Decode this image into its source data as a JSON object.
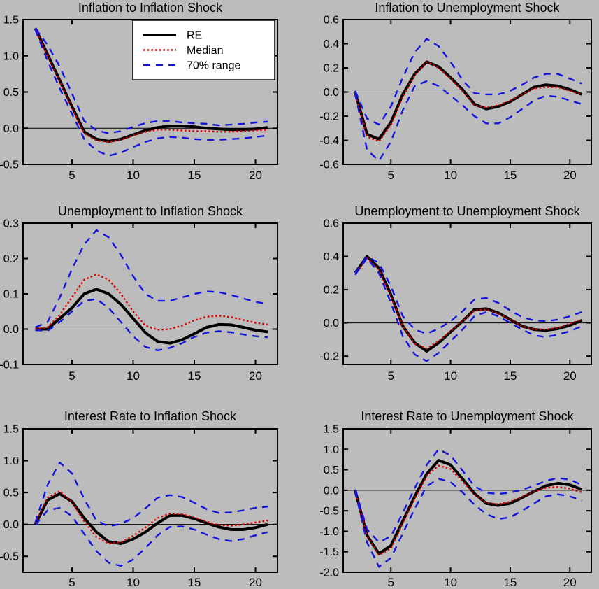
{
  "figure": {
    "background_color": "#bcbcbc",
    "axis_color": "#000000",
    "series_colors": {
      "re": "#000000",
      "median": "#d40000",
      "range": "#1414dd"
    },
    "legend": {
      "position": "upper right of first chart",
      "entries": [
        {
          "label": "RE",
          "series": "re"
        },
        {
          "label": "Median",
          "series": "median"
        },
        {
          "label": "70% range",
          "series": "range"
        }
      ]
    }
  },
  "chart_data": [
    {
      "type": "line",
      "title": "Inflation to Inflation Shock",
      "x": [
        2,
        3,
        4,
        5,
        6,
        7,
        8,
        9,
        10,
        11,
        12,
        13,
        14,
        15,
        16,
        17,
        18,
        19,
        20,
        21
      ],
      "xticks": [
        5,
        10,
        15,
        20
      ],
      "yticks": [
        1.5,
        1.0,
        0.5,
        0.0,
        -0.5
      ],
      "xlim": [
        1,
        21.8
      ],
      "ylim": [
        -0.5,
        1.5
      ],
      "grid": false,
      "zero_line": true,
      "legend": true,
      "series": [
        {
          "name": "RE",
          "style": "re",
          "values": [
            1.38,
            1.02,
            0.66,
            0.3,
            -0.05,
            -0.15,
            -0.18,
            -0.15,
            -0.09,
            -0.03,
            0.01,
            0.03,
            0.03,
            0.02,
            0.0,
            -0.01,
            -0.02,
            -0.02,
            -0.01,
            0.01
          ]
        },
        {
          "name": "Median",
          "style": "median",
          "values": [
            1.37,
            1.0,
            0.64,
            0.28,
            -0.07,
            -0.17,
            -0.19,
            -0.16,
            -0.1,
            -0.05,
            -0.02,
            -0.02,
            -0.03,
            -0.04,
            -0.04,
            -0.05,
            -0.05,
            -0.04,
            -0.03,
            -0.02
          ]
        },
        {
          "name": "70% range upper",
          "style": "range",
          "values": [
            1.38,
            1.15,
            0.85,
            0.48,
            0.1,
            -0.03,
            -0.07,
            -0.04,
            0.02,
            0.07,
            0.1,
            0.1,
            0.08,
            0.07,
            0.06,
            0.04,
            0.05,
            0.06,
            0.08,
            0.09
          ]
        },
        {
          "name": "70% range lower",
          "style": "range",
          "values": [
            1.36,
            0.93,
            0.55,
            0.2,
            -0.15,
            -0.31,
            -0.38,
            -0.34,
            -0.26,
            -0.19,
            -0.14,
            -0.12,
            -0.13,
            -0.15,
            -0.16,
            -0.16,
            -0.15,
            -0.14,
            -0.12,
            -0.1
          ]
        }
      ]
    },
    {
      "type": "line",
      "title": "Inflation to Unemployment Shock",
      "x": [
        2,
        3,
        4,
        5,
        6,
        7,
        8,
        9,
        10,
        11,
        12,
        13,
        14,
        15,
        16,
        17,
        18,
        19,
        20,
        21
      ],
      "xticks": [
        5,
        10,
        15,
        20
      ],
      "yticks": [
        0.6,
        0.4,
        0.2,
        0.0,
        -0.2,
        -0.4,
        -0.6
      ],
      "xlim": [
        1,
        21.8
      ],
      "ylim": [
        -0.6,
        0.6
      ],
      "grid": false,
      "zero_line": true,
      "legend": false,
      "series": [
        {
          "name": "RE",
          "style": "re",
          "values": [
            0.0,
            -0.35,
            -0.39,
            -0.25,
            -0.02,
            0.15,
            0.25,
            0.21,
            0.12,
            0.02,
            -0.1,
            -0.14,
            -0.12,
            -0.08,
            -0.02,
            0.04,
            0.06,
            0.05,
            0.02,
            -0.02
          ]
        },
        {
          "name": "Median",
          "style": "median",
          "values": [
            0.0,
            -0.37,
            -0.41,
            -0.27,
            -0.04,
            0.14,
            0.25,
            0.2,
            0.11,
            0.01,
            -0.11,
            -0.13,
            -0.11,
            -0.07,
            -0.02,
            0.03,
            0.04,
            0.04,
            0.01,
            -0.02
          ]
        },
        {
          "name": "70% range upper",
          "style": "range",
          "values": [
            0.01,
            -0.22,
            -0.27,
            -0.12,
            0.12,
            0.33,
            0.44,
            0.38,
            0.25,
            0.1,
            -0.01,
            -0.02,
            -0.02,
            0.01,
            0.06,
            0.12,
            0.15,
            0.15,
            0.11,
            0.07
          ]
        },
        {
          "name": "70% range lower",
          "style": "range",
          "values": [
            -0.01,
            -0.48,
            -0.57,
            -0.41,
            -0.15,
            0.05,
            0.09,
            0.05,
            -0.03,
            -0.11,
            -0.2,
            -0.26,
            -0.26,
            -0.21,
            -0.14,
            -0.07,
            -0.03,
            -0.04,
            -0.07,
            -0.1
          ]
        }
      ]
    },
    {
      "type": "line",
      "title": "Unemployment to Inflation Shock",
      "x": [
        2,
        3,
        4,
        5,
        6,
        7,
        8,
        9,
        10,
        11,
        12,
        13,
        14,
        15,
        16,
        17,
        18,
        19,
        20,
        21
      ],
      "xticks": [
        5,
        10,
        15,
        20
      ],
      "yticks": [
        0.3,
        0.2,
        0.1,
        0.0,
        -0.1
      ],
      "xlim": [
        1,
        21.8
      ],
      "ylim": [
        -0.1,
        0.3
      ],
      "grid": false,
      "zero_line": true,
      "legend": false,
      "series": [
        {
          "name": "RE",
          "style": "re",
          "values": [
            0.0,
            0.0,
            0.03,
            0.06,
            0.1,
            0.113,
            0.1,
            0.07,
            0.03,
            -0.01,
            -0.035,
            -0.04,
            -0.03,
            -0.013,
            0.005,
            0.013,
            0.012,
            0.005,
            -0.003,
            -0.008
          ]
        },
        {
          "name": "Median",
          "style": "median",
          "values": [
            0.0,
            0.005,
            0.04,
            0.09,
            0.14,
            0.155,
            0.14,
            0.1,
            0.05,
            0.01,
            -0.002,
            0.0,
            0.01,
            0.025,
            0.035,
            0.038,
            0.034,
            0.026,
            0.018,
            0.013
          ]
        },
        {
          "name": "70% range upper",
          "style": "range",
          "values": [
            0.005,
            0.02,
            0.09,
            0.17,
            0.24,
            0.28,
            0.26,
            0.21,
            0.15,
            0.1,
            0.08,
            0.08,
            0.09,
            0.1,
            0.107,
            0.105,
            0.097,
            0.087,
            0.077,
            0.071
          ]
        },
        {
          "name": "70% range lower",
          "style": "range",
          "values": [
            -0.003,
            -0.005,
            0.02,
            0.05,
            0.08,
            0.085,
            0.06,
            0.02,
            -0.02,
            -0.05,
            -0.06,
            -0.053,
            -0.04,
            -0.022,
            -0.01,
            -0.006,
            -0.009,
            -0.015,
            -0.02,
            -0.023
          ]
        }
      ]
    },
    {
      "type": "line",
      "title": "Unemployment to Unemployment Shock",
      "x": [
        2,
        3,
        4,
        5,
        6,
        7,
        8,
        9,
        10,
        11,
        12,
        13,
        14,
        15,
        16,
        17,
        18,
        19,
        20,
        21
      ],
      "xticks": [
        5,
        10,
        15,
        20
      ],
      "yticks": [
        0.6,
        0.4,
        0.2,
        0.0,
        -0.2
      ],
      "xlim": [
        1,
        21.8
      ],
      "ylim": [
        -0.25,
        0.6
      ],
      "grid": false,
      "zero_line": true,
      "legend": false,
      "series": [
        {
          "name": "RE",
          "style": "re",
          "values": [
            0.3,
            0.4,
            0.33,
            0.17,
            -0.02,
            -0.12,
            -0.17,
            -0.12,
            -0.055,
            0.01,
            0.08,
            0.085,
            0.06,
            0.02,
            -0.02,
            -0.04,
            -0.045,
            -0.035,
            -0.015,
            0.015
          ]
        },
        {
          "name": "Median",
          "style": "median",
          "values": [
            0.29,
            0.39,
            0.32,
            0.16,
            -0.02,
            -0.125,
            -0.155,
            -0.11,
            -0.05,
            0.01,
            0.075,
            0.08,
            0.055,
            0.02,
            -0.02,
            -0.04,
            -0.04,
            -0.03,
            -0.005,
            0.02
          ]
        },
        {
          "name": "70% range upper",
          "style": "range",
          "values": [
            0.3,
            0.4,
            0.36,
            0.22,
            0.04,
            -0.04,
            -0.065,
            -0.035,
            0.01,
            0.07,
            0.14,
            0.15,
            0.12,
            0.075,
            0.035,
            0.015,
            0.01,
            0.02,
            0.04,
            0.065
          ]
        },
        {
          "name": "70% range lower",
          "style": "range",
          "values": [
            0.29,
            0.39,
            0.3,
            0.12,
            -0.08,
            -0.19,
            -0.23,
            -0.18,
            -0.11,
            -0.04,
            0.04,
            0.065,
            0.04,
            0.0,
            -0.04,
            -0.075,
            -0.085,
            -0.07,
            -0.05,
            -0.02
          ]
        }
      ]
    },
    {
      "type": "line",
      "title": "Interest Rate to Inflation Shock",
      "x": [
        2,
        3,
        4,
        5,
        6,
        7,
        8,
        9,
        10,
        11,
        12,
        13,
        14,
        15,
        16,
        17,
        18,
        19,
        20,
        21
      ],
      "xticks": [
        5,
        10,
        15,
        20
      ],
      "yticks": [
        1.5,
        1.0,
        0.5,
        0.0,
        -0.5
      ],
      "xlim": [
        1,
        21.8
      ],
      "ylim": [
        -0.75,
        1.5
      ],
      "grid": false,
      "zero_line": true,
      "legend": false,
      "series": [
        {
          "name": "RE",
          "style": "re",
          "values": [
            0.0,
            0.38,
            0.48,
            0.36,
            0.1,
            -0.12,
            -0.27,
            -0.3,
            -0.23,
            -0.12,
            0.02,
            0.14,
            0.14,
            0.09,
            0.02,
            -0.04,
            -0.08,
            -0.08,
            -0.05,
            0.0
          ]
        },
        {
          "name": "Median",
          "style": "median",
          "values": [
            0.02,
            0.42,
            0.52,
            0.35,
            0.05,
            -0.2,
            -0.3,
            -0.28,
            -0.18,
            -0.05,
            0.1,
            0.17,
            0.16,
            0.11,
            0.04,
            -0.01,
            -0.02,
            0.0,
            0.03,
            0.06
          ]
        },
        {
          "name": "70% range upper",
          "style": "range",
          "values": [
            0.03,
            0.62,
            0.97,
            0.8,
            0.4,
            0.06,
            -0.03,
            0.01,
            0.1,
            0.25,
            0.42,
            0.46,
            0.43,
            0.34,
            0.24,
            0.18,
            0.19,
            0.22,
            0.26,
            0.28
          ]
        },
        {
          "name": "70% range lower",
          "style": "range",
          "values": [
            -0.01,
            0.22,
            0.26,
            0.13,
            -0.15,
            -0.42,
            -0.6,
            -0.65,
            -0.55,
            -0.37,
            -0.17,
            -0.04,
            -0.03,
            -0.08,
            -0.16,
            -0.23,
            -0.26,
            -0.23,
            -0.17,
            -0.12
          ]
        }
      ]
    },
    {
      "type": "line",
      "title": "Interest Rate to Unemployment Shock",
      "x": [
        2,
        3,
        4,
        5,
        6,
        7,
        8,
        9,
        10,
        11,
        12,
        13,
        14,
        15,
        16,
        17,
        18,
        19,
        20,
        21
      ],
      "xticks": [
        5,
        10,
        15,
        20
      ],
      "yticks": [
        1.5,
        1.0,
        0.5,
        0.0,
        -0.5,
        -1.0,
        -1.5,
        -2.0
      ],
      "xlim": [
        1,
        21.8
      ],
      "ylim": [
        -2.0,
        1.5
      ],
      "grid": false,
      "zero_line": true,
      "legend": false,
      "series": [
        {
          "name": "RE",
          "style": "re",
          "values": [
            0.0,
            -1.1,
            -1.55,
            -1.35,
            -0.75,
            -0.15,
            0.4,
            0.73,
            0.62,
            0.28,
            -0.08,
            -0.32,
            -0.37,
            -0.32,
            -0.18,
            -0.03,
            0.11,
            0.17,
            0.13,
            0.02
          ]
        },
        {
          "name": "Median",
          "style": "median",
          "values": [
            0.0,
            -1.12,
            -1.58,
            -1.42,
            -0.8,
            -0.2,
            0.35,
            0.6,
            0.52,
            0.22,
            -0.1,
            -0.31,
            -0.34,
            -0.28,
            -0.16,
            -0.03,
            0.06,
            0.08,
            0.04,
            -0.05
          ]
        },
        {
          "name": "70% range upper",
          "style": "range",
          "values": [
            0.02,
            -0.95,
            -1.27,
            -1.12,
            -0.55,
            0.05,
            0.62,
            1.0,
            0.85,
            0.48,
            0.1,
            -0.06,
            -0.09,
            -0.06,
            0.01,
            0.11,
            0.23,
            0.3,
            0.26,
            0.13
          ]
        },
        {
          "name": "70% range lower",
          "style": "range",
          "values": [
            -0.02,
            -1.27,
            -1.87,
            -1.65,
            -1.05,
            -0.45,
            0.1,
            0.28,
            0.2,
            -0.05,
            -0.35,
            -0.58,
            -0.7,
            -0.66,
            -0.5,
            -0.32,
            -0.15,
            -0.1,
            -0.15,
            -0.25
          ]
        }
      ]
    }
  ]
}
